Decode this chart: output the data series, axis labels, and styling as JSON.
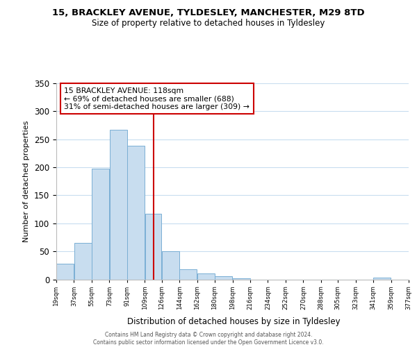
{
  "title_line1": "15, BRACKLEY AVENUE, TYLDESLEY, MANCHESTER, M29 8TD",
  "title_line2": "Size of property relative to detached houses in Tyldesley",
  "xlabel": "Distribution of detached houses by size in Tyldesley",
  "ylabel": "Number of detached properties",
  "bar_color": "#c8ddef",
  "bar_edge_color": "#7aafd4",
  "reference_line_x": 118,
  "reference_line_color": "#cc0000",
  "annotation_text": "15 BRACKLEY AVENUE: 118sqm\n← 69% of detached houses are smaller (688)\n31% of semi-detached houses are larger (309) →",
  "annotation_box_color": "#ffffff",
  "annotation_box_edge": "#cc0000",
  "footer_text": "Contains HM Land Registry data © Crown copyright and database right 2024.\nContains public sector information licensed under the Open Government Licence v3.0.",
  "bin_edges": [
    19,
    37,
    55,
    73,
    91,
    109,
    126,
    144,
    162,
    180,
    198,
    216,
    234,
    252,
    270,
    288,
    305,
    323,
    341,
    359,
    377
  ],
  "bin_counts": [
    28,
    65,
    197,
    267,
    239,
    117,
    50,
    18,
    11,
    5,
    2,
    0,
    0,
    0,
    0,
    0,
    0,
    0,
    3,
    0
  ],
  "tick_labels": [
    "19sqm",
    "37sqm",
    "55sqm",
    "73sqm",
    "91sqm",
    "109sqm",
    "126sqm",
    "144sqm",
    "162sqm",
    "180sqm",
    "198sqm",
    "216sqm",
    "234sqm",
    "252sqm",
    "270sqm",
    "288sqm",
    "305sqm",
    "323sqm",
    "341sqm",
    "359sqm",
    "377sqm"
  ],
  "ylim": [
    0,
    350
  ],
  "yticks": [
    0,
    50,
    100,
    150,
    200,
    250,
    300,
    350
  ],
  "background_color": "#ffffff",
  "grid_color": "#c8ddef"
}
